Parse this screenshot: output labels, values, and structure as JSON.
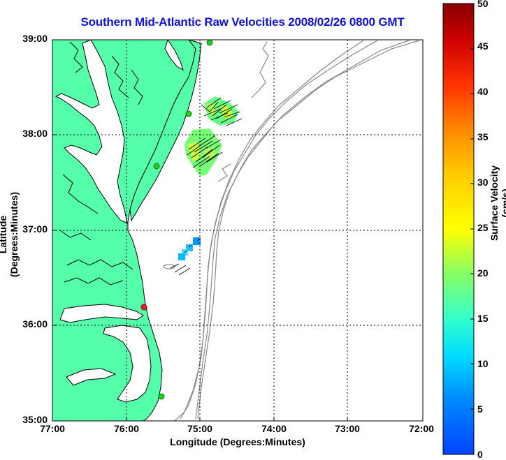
{
  "title": "Southern Mid-Atlantic Raw Velocities 2008/02/26 0800 GMT",
  "xlabel": "Longitude (Degrees:Minutes)",
  "ylabel": "Latitude (Degrees:Minutes)",
  "colorbar": {
    "label": "Surface Velocity (cm/s)",
    "ticks": [
      "0",
      "5",
      "10",
      "15",
      "20",
      "25",
      "30",
      "35",
      "40",
      "45",
      "50"
    ],
    "range": [
      0,
      50
    ]
  },
  "axes": {
    "x_ticks": [
      "77:00",
      "76:00",
      "75:00",
      "74:00",
      "73:00",
      "72:00"
    ],
    "y_ticks": [
      "39:00",
      "38:00",
      "37:00",
      "36:00",
      "35:00"
    ]
  },
  "colors": {
    "land": "#55ffaa",
    "coast": "#000000",
    "bathymetry": "#888888",
    "title": "#1010e0",
    "grid": "#000000"
  },
  "stations": [
    {
      "color": "#22cc22"
    },
    {
      "color": "#22cc22"
    },
    {
      "color": "#22cc22"
    },
    {
      "color": "#ee2222"
    },
    {
      "color": "#22cc22"
    }
  ]
}
